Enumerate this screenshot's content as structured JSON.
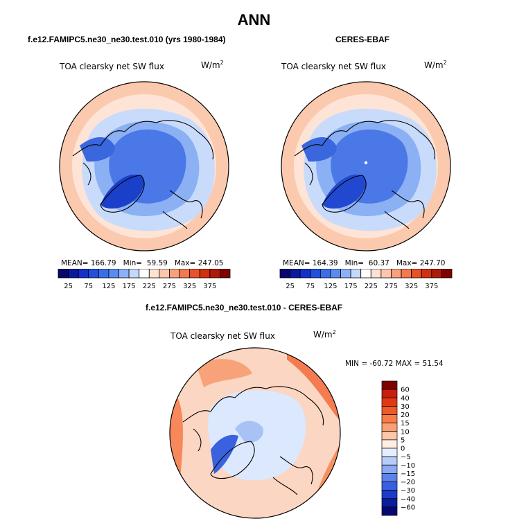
{
  "main_title": "ANN",
  "panels": {
    "model": {
      "title": "f.e12.FAMIPC5.ne30_ne30.test.010 (yrs 1980-1984)",
      "variable": "TOA clearsky net SW flux",
      "units_base": "W/m",
      "units_exp": "2",
      "mean_label": "MEAN=",
      "mean": "166.79",
      "min_label": "Min=",
      "min": "59.59",
      "max_label": "Max=",
      "max": "247.05"
    },
    "obs": {
      "title": "CERES-EBAF",
      "variable": "TOA clearsky net SW flux",
      "units_base": "W/m",
      "units_exp": "2",
      "mean_label": "MEAN=",
      "mean": "164.39",
      "min_label": "Min=",
      "min": "60.37",
      "max_label": "Max=",
      "max": "247.70"
    },
    "diff": {
      "title": "f.e12.FAMIPC5.ne30_ne30.test.010 - CERES-EBAF",
      "variable": "TOA clearsky net SW flux",
      "units_base": "W/m",
      "units_exp": "2",
      "minmax": "MIN = -60.72  MAX =  51.54"
    }
  },
  "colorbar_abs": {
    "colors": [
      "#08086e",
      "#0a1a9c",
      "#1430c8",
      "#2050dc",
      "#3a6ee6",
      "#5a8cf0",
      "#8cb0f6",
      "#c4d8fc",
      "#ffffff",
      "#fde2d2",
      "#fcc6ac",
      "#f9a07c",
      "#f47850",
      "#e85228",
      "#d03010",
      "#ae1a0a",
      "#800000"
    ],
    "labels": [
      "25",
      "75",
      "125",
      "175",
      "225",
      "275",
      "325",
      "375"
    ]
  },
  "colorbar_diff": {
    "colors": [
      "#800000",
      "#c81e0a",
      "#e03a14",
      "#f05a28",
      "#f87c48",
      "#fba070",
      "#fdc8a8",
      "#ffeee4",
      "#e4eeff",
      "#b8ccfa",
      "#8aaaf4",
      "#5a84ec",
      "#3860e0",
      "#1c3cc8",
      "#0a1ea0",
      "#060a70"
    ],
    "labels": [
      "60",
      "40",
      "30",
      "20",
      "15",
      "10",
      "5",
      "0",
      "−5",
      "−10",
      "−15",
      "−20",
      "−30",
      "−40",
      "−60"
    ]
  },
  "colors": {
    "ring_warm": "#fcd6c0",
    "ring_light": "#fde8dc",
    "mid_blue": "#a6c4f6",
    "deep_blue": "#4a78e6",
    "ice": "#1a3fc8",
    "diff_warm": "#f6885c",
    "diff_cool": "#c8dafc"
  },
  "map_icons": [
    "north-polar-projection"
  ]
}
